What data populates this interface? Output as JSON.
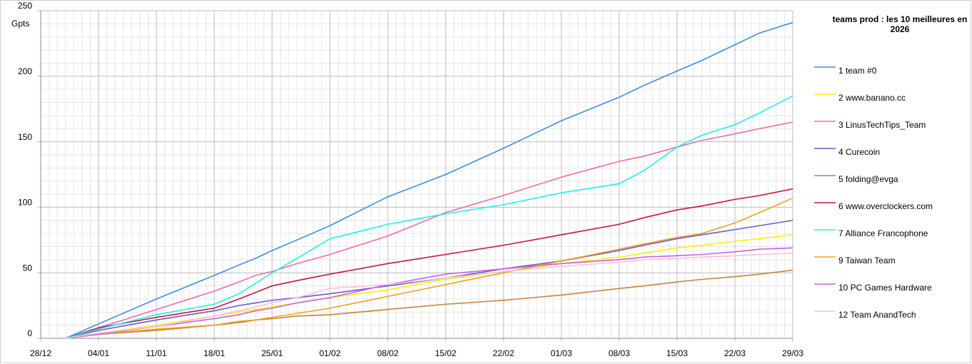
{
  "chart_data": {
    "type": "line",
    "title": "teams prod : les 10 meilleures en 2026",
    "ylabel": "Gpts",
    "x": [
      3,
      7,
      14,
      21,
      24,
      26,
      28,
      31,
      35,
      42,
      49,
      56,
      63,
      70,
      73,
      77,
      80,
      84,
      87,
      91
    ],
    "xlim": [
      0,
      91
    ],
    "xticks": [
      {
        "value": 0,
        "label": "28/12"
      },
      {
        "value": 7,
        "label": "04/01"
      },
      {
        "value": 14,
        "label": "11/01"
      },
      {
        "value": 21,
        "label": "18/01"
      },
      {
        "value": 28,
        "label": "25/01"
      },
      {
        "value": 35,
        "label": "01/02"
      },
      {
        "value": 42,
        "label": "08/02"
      },
      {
        "value": 49,
        "label": "15/02"
      },
      {
        "value": 56,
        "label": "22/02"
      },
      {
        "value": 63,
        "label": "01/03"
      },
      {
        "value": 70,
        "label": "08/03"
      },
      {
        "value": 77,
        "label": "15/03"
      },
      {
        "value": 84,
        "label": "22/03"
      },
      {
        "value": 91,
        "label": "29/03"
      }
    ],
    "xminorticks": [
      1,
      2,
      3,
      4,
      5,
      6,
      8,
      9,
      10,
      11,
      12,
      13,
      15,
      16,
      17,
      18,
      19,
      20,
      22,
      23,
      24,
      25,
      26,
      27,
      29,
      30,
      31,
      32,
      33,
      34,
      36,
      37,
      38,
      39,
      40,
      41,
      43,
      44,
      45,
      46,
      47,
      48,
      50,
      51,
      52,
      53,
      54,
      55,
      57,
      58,
      59,
      60,
      61,
      62,
      64,
      65,
      66,
      67,
      68,
      69,
      71,
      72,
      73,
      74,
      75,
      76,
      78,
      79,
      80,
      81,
      82,
      83,
      85,
      86,
      87,
      88,
      89,
      90
    ],
    "ylim": [
      0,
      250
    ],
    "yticks": [
      0,
      50,
      100,
      150,
      200,
      250
    ],
    "yminorticks": [
      10,
      20,
      30,
      40,
      60,
      70,
      80,
      90,
      110,
      120,
      130,
      140,
      160,
      170,
      180,
      190,
      210,
      220,
      230,
      240
    ],
    "grid": true,
    "series": [
      {
        "name": "1 team #0",
        "color": "#3c8ee6",
        "values": [
          0,
          11,
          30,
          48,
          56,
          61,
          67,
          75,
          86,
          108,
          125,
          145,
          166,
          184,
          193,
          204,
          212,
          224,
          233,
          241
        ]
      },
      {
        "name": "2 www.banano.cc",
        "color": "#f5f500",
        "values": [
          0,
          4,
          10,
          17,
          20,
          22,
          24,
          27,
          31,
          37,
          45,
          51,
          57,
          62,
          65,
          69,
          71,
          74,
          76,
          79
        ]
      },
      {
        "name": "3 LinusTechTips_Team",
        "color": "#f06aaa",
        "values": [
          0,
          8,
          22,
          36,
          43,
          48,
          51,
          57,
          64,
          78,
          96,
          109,
          123,
          135,
          139,
          146,
          151,
          156,
          160,
          165
        ]
      },
      {
        "name": "4 Curecoin",
        "color": "#6a5acd",
        "values": [
          0,
          6,
          14,
          21,
          25,
          27,
          29,
          31,
          34,
          40,
          46,
          53,
          59,
          67,
          71,
          76,
          79,
          83,
          86,
          90
        ]
      },
      {
        "name": "5 folding@evga",
        "color": "#c8823c",
        "values": [
          0,
          3,
          6,
          10,
          12,
          14,
          15,
          17,
          18,
          22,
          26,
          29,
          33,
          38,
          40,
          43,
          45,
          47,
          49,
          52
        ]
      },
      {
        "name": "6 www.overclockers.com",
        "color": "#c8143c",
        "values": [
          0,
          8,
          16,
          23,
          30,
          35,
          40,
          44,
          49,
          57,
          64,
          71,
          79,
          87,
          92,
          98,
          101,
          106,
          109,
          114
        ]
      },
      {
        "name": "7 Alliance Francophone",
        "color": "#1ef0f0",
        "values": [
          0,
          7,
          18,
          26,
          34,
          42,
          50,
          61,
          76,
          87,
          95,
          102,
          111,
          118,
          128,
          146,
          155,
          163,
          172,
          185
        ]
      },
      {
        "name": "9 Taiwan Team",
        "color": "#f0a014",
        "values": [
          0,
          3,
          7,
          10,
          13,
          14,
          16,
          19,
          23,
          32,
          41,
          50,
          59,
          68,
          72,
          77,
          80,
          88,
          96,
          107
        ]
      },
      {
        "name": "10 PC Games Hardware",
        "color": "#c864dc",
        "values": [
          0,
          3,
          9,
          15,
          18,
          21,
          23,
          27,
          31,
          41,
          49,
          53,
          57,
          60,
          62,
          63,
          64,
          66,
          68,
          69
        ]
      },
      {
        "name": "12 Team AnandTech",
        "color": "#f8c0d8",
        "values": [
          0,
          4,
          9,
          17,
          21,
          24,
          27,
          31,
          38,
          41,
          46,
          51,
          55,
          58,
          60,
          61,
          62,
          63,
          64,
          65
        ]
      }
    ]
  }
}
